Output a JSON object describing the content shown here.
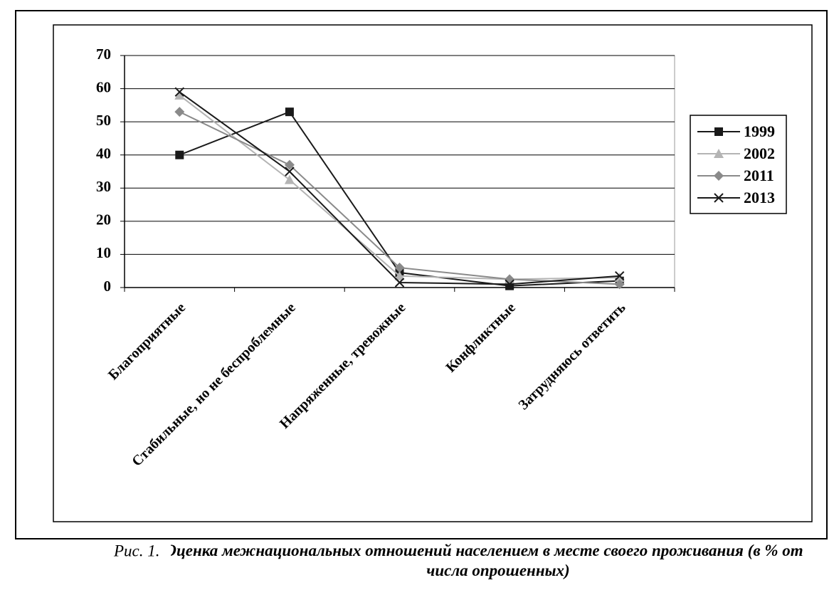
{
  "chart_data": {
    "type": "line",
    "caption_label": "Рис. 1.",
    "title": "Оценка межнациональных отношений населением в месте своего проживания (в % от числа опрошенных)",
    "categories": [
      "Благоприятные",
      "Стабильные, но не беспроблемные",
      "Напряженные, тревожные",
      "Конфликтные",
      "Затрудняюсь ответить"
    ],
    "series": [
      {
        "name": "1999",
        "color": "#1a1a1a",
        "marker": "square",
        "values": [
          40,
          53,
          4.5,
          0.5,
          2
        ]
      },
      {
        "name": "2002",
        "color": "#b4b4b4",
        "marker": "triangle",
        "values": [
          58,
          32.5,
          3.5,
          2.5,
          3
        ]
      },
      {
        "name": "2011",
        "color": "#8a8a8a",
        "marker": "diamond",
        "values": [
          53,
          37,
          6,
          2.5,
          1
        ]
      },
      {
        "name": "2013",
        "color": "#1a1a1a",
        "marker": "x",
        "values": [
          59,
          35,
          1.5,
          1,
          3.5
        ]
      }
    ],
    "ylim": [
      0,
      70
    ],
    "yticks": [
      0,
      10,
      20,
      30,
      40,
      50,
      60,
      70
    ],
    "grid": true
  }
}
